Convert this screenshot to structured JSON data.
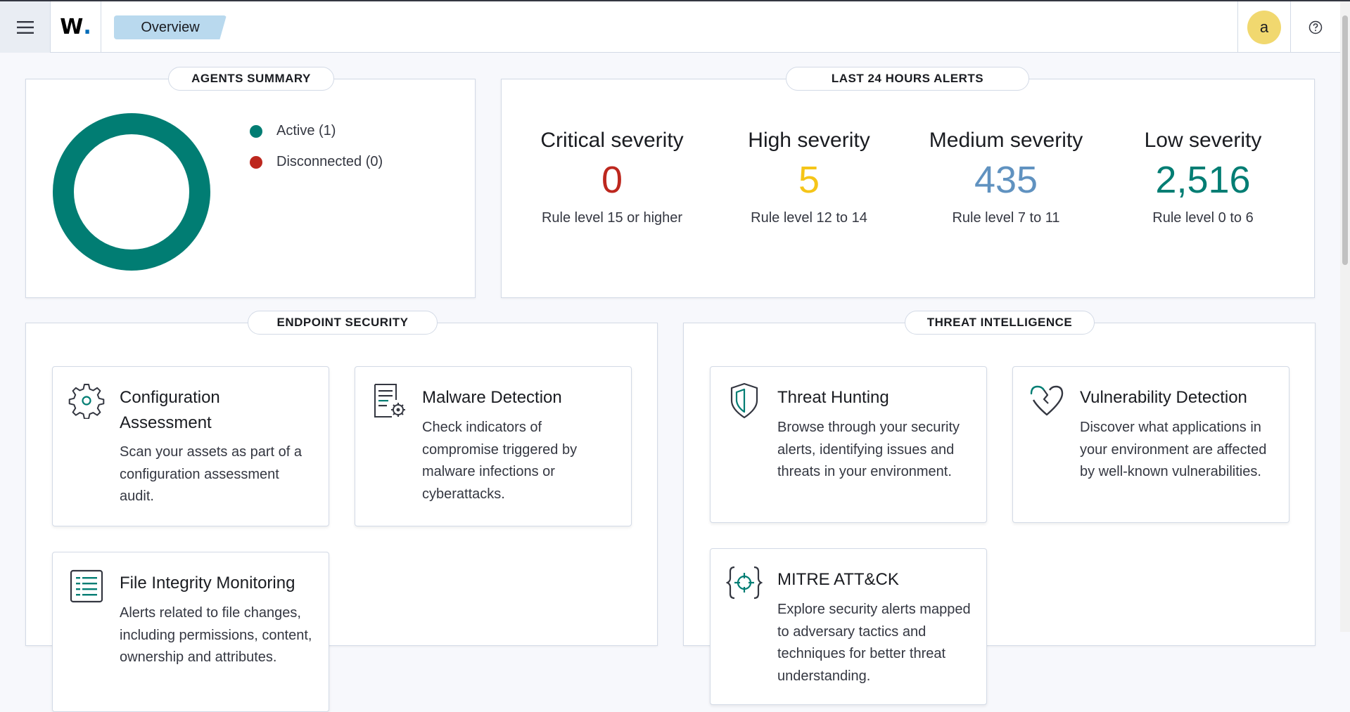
{
  "header": {
    "breadcrumb": "Overview",
    "logo_text": "W",
    "user_initial": "a"
  },
  "agents_summary": {
    "title": "AGENTS SUMMARY",
    "legend": [
      {
        "label": "Active (1)",
        "color": "#017d73",
        "count": 1
      },
      {
        "label": "Disconnected (0)",
        "color": "#bd271e",
        "count": 0
      }
    ]
  },
  "alerts": {
    "title": "LAST 24 HOURS ALERTS",
    "severities": [
      {
        "title": "Critical severity",
        "value": "0",
        "desc": "Rule level 15 or higher",
        "color": "#bd271e"
      },
      {
        "title": "High severity",
        "value": "5",
        "desc": "Rule level 12 to 14",
        "color": "#f5c518"
      },
      {
        "title": "Medium severity",
        "value": "435",
        "desc": "Rule level 7 to 11",
        "color": "#6092c0"
      },
      {
        "title": "Low severity",
        "value": "2,516",
        "desc": "Rule level 0 to 6",
        "color": "#017d73"
      }
    ]
  },
  "endpoint_security": {
    "title": "ENDPOINT SECURITY",
    "cards": [
      {
        "title": "Configuration Assessment",
        "desc": "Scan your assets as part of a configuration assessment audit.",
        "icon": "gear-icon"
      },
      {
        "title": "Malware Detection",
        "desc": "Check indicators of compromise triggered by malware infections or cyberattacks.",
        "icon": "document-gear-icon"
      },
      {
        "title": "File Integrity Monitoring",
        "desc": "Alerts related to file changes, including permissions, content, ownership and attributes.",
        "icon": "list-document-icon"
      }
    ]
  },
  "threat_intelligence": {
    "title": "THREAT INTELLIGENCE",
    "cards": [
      {
        "title": "Threat Hunting",
        "desc": "Browse through your security alerts, identifying issues and threats in your environment.",
        "icon": "shield-icon"
      },
      {
        "title": "Vulnerability Detection",
        "desc": "Discover what applications in your environment are affected by well-known vulnerabilities.",
        "icon": "broken-heart-icon"
      },
      {
        "title": "MITRE ATT&CK",
        "desc": "Explore security alerts mapped to adversary tactics and techniques for better threat understanding.",
        "icon": "crosshair-icon"
      }
    ]
  }
}
